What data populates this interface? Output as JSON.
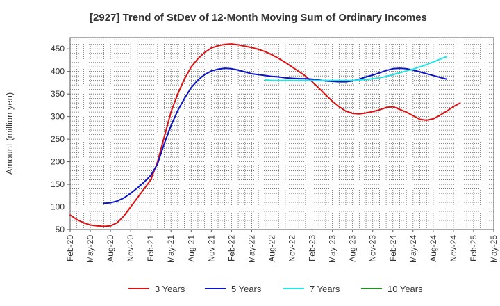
{
  "chart_data": {
    "type": "line",
    "title": "[2927]  Trend of StDev of 12-Month Moving Sum of Ordinary Incomes",
    "xlabel": "",
    "ylabel": "Amount (million yen)",
    "ylim": [
      50,
      475
    ],
    "yticks": [
      50,
      100,
      150,
      200,
      250,
      300,
      350,
      400,
      450
    ],
    "x_tick_labels": [
      "Feb-20",
      "May-20",
      "Aug-20",
      "Nov-20",
      "Feb-21",
      "May-21",
      "Aug-21",
      "Nov-21",
      "Feb-22",
      "May-22",
      "Aug-22",
      "Nov-22",
      "Feb-23",
      "May-23",
      "Aug-23",
      "Nov-23",
      "Feb-24",
      "May-24",
      "Aug-24",
      "Nov-24",
      "Feb-25",
      "May-25"
    ],
    "x_month_range": [
      0,
      63
    ],
    "grid": true,
    "legend_position": "bottom",
    "series": [
      {
        "name": "3 Years",
        "color": "#dd1111",
        "x": [
          0,
          1,
          2,
          3,
          4,
          5,
          6,
          7,
          8,
          9,
          10,
          11,
          12,
          13,
          14,
          15,
          16,
          17,
          18,
          19,
          20,
          21,
          22,
          23,
          24,
          25,
          26,
          27,
          28,
          29,
          30,
          31,
          32,
          33,
          34,
          35,
          36,
          37,
          38,
          39,
          40,
          41,
          42,
          43,
          44,
          45,
          46,
          47,
          48,
          49,
          50,
          51,
          52,
          53,
          54,
          55,
          56,
          57,
          58,
          59,
          60
        ],
        "values": [
          82,
          72,
          65,
          60,
          58,
          57,
          58,
          65,
          80,
          100,
          120,
          140,
          160,
          200,
          255,
          310,
          350,
          383,
          410,
          428,
          442,
          452,
          457,
          460,
          461,
          459,
          456,
          453,
          449,
          444,
          437,
          429,
          420,
          410,
          400,
          390,
          377,
          363,
          348,
          334,
          322,
          312,
          307,
          306,
          308,
          311,
          315,
          320,
          322,
          316,
          310,
          302,
          294,
          292,
          295,
          303,
          312,
          322,
          330,
          null,
          null
        ],
        "values_trim": 59
      },
      {
        "name": "5 Years",
        "color": "#0a14c8",
        "x": [
          5,
          6,
          7,
          8,
          9,
          10,
          11,
          12,
          13,
          14,
          15,
          16,
          17,
          18,
          19,
          20,
          21,
          22,
          23,
          24,
          25,
          26,
          27,
          28,
          29,
          30,
          31,
          32,
          33,
          34,
          35,
          36,
          37,
          38,
          39,
          40,
          41,
          42,
          43,
          44,
          45,
          46,
          47,
          48,
          49,
          50,
          51,
          52,
          53,
          54,
          55,
          56,
          57,
          58,
          59,
          60
        ],
        "values": [
          108,
          109,
          113,
          120,
          130,
          142,
          155,
          170,
          195,
          240,
          280,
          313,
          340,
          364,
          381,
          393,
          401,
          405,
          407,
          406,
          403,
          399,
          395,
          393,
          391,
          389,
          388,
          386,
          385,
          384,
          384,
          383,
          381,
          379,
          378,
          377,
          377,
          379,
          383,
          388,
          392,
          397,
          402,
          406,
          407,
          406,
          403,
          399,
          395,
          391,
          387,
          383,
          null,
          null,
          null,
          null
        ]
      },
      {
        "name": "7 Years",
        "color": "#22e6e6",
        "x": [
          29,
          30,
          31,
          32,
          33,
          34,
          35,
          36,
          37,
          38,
          39,
          40,
          41,
          42,
          43,
          44,
          45,
          46,
          47,
          48,
          49,
          50,
          51,
          52,
          53,
          54,
          55,
          56,
          57,
          58,
          59,
          60
        ],
        "values": [
          381,
          380,
          380,
          380,
          380,
          380,
          380,
          380,
          380,
          380,
          380,
          380,
          380,
          380,
          381,
          382,
          384,
          386,
          389,
          393,
          397,
          401,
          405,
          410,
          415,
          421,
          427,
          433,
          null,
          null,
          null,
          null
        ]
      },
      {
        "name": "10 Years",
        "color": "#228b22",
        "x": [],
        "values": []
      }
    ]
  }
}
